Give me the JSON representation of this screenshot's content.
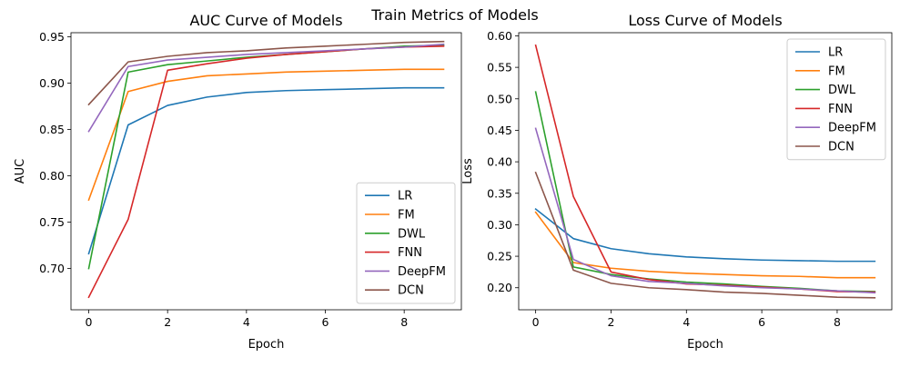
{
  "figure": {
    "title": "Train Metrics of Models"
  },
  "chart_data": [
    {
      "type": "line",
      "title": "AUC Curve of Models",
      "xlabel": "Epoch",
      "ylabel": "AUC",
      "x": [
        0,
        1,
        2,
        3,
        4,
        5,
        6,
        7,
        8,
        9
      ],
      "xlim": [
        -0.45,
        9.45
      ],
      "ylim": [
        0.6555,
        0.9545
      ],
      "xticks": [
        0,
        2,
        4,
        6,
        8
      ],
      "yticks": [
        0.7,
        0.75,
        0.8,
        0.85,
        0.9,
        0.95
      ],
      "ytick_decimals": 2,
      "grid": false,
      "legend_position": "lower right",
      "series": [
        {
          "name": "LR",
          "color": "#1f77b4",
          "values": [
            0.716,
            0.855,
            0.876,
            0.885,
            0.89,
            0.892,
            0.893,
            0.894,
            0.895,
            0.895
          ]
        },
        {
          "name": "FM",
          "color": "#ff7f0e",
          "values": [
            0.774,
            0.891,
            0.902,
            0.908,
            0.91,
            0.912,
            0.913,
            0.914,
            0.915,
            0.915
          ]
        },
        {
          "name": "DWL",
          "color": "#2ca02c",
          "values": [
            0.7,
            0.912,
            0.92,
            0.924,
            0.928,
            0.931,
            0.934,
            0.937,
            0.94,
            0.941
          ]
        },
        {
          "name": "FNN",
          "color": "#d62728",
          "values": [
            0.669,
            0.753,
            0.914,
            0.921,
            0.927,
            0.931,
            0.934,
            0.937,
            0.939,
            0.94
          ]
        },
        {
          "name": "DeepFM",
          "color": "#9467bd",
          "values": [
            0.848,
            0.918,
            0.925,
            0.928,
            0.931,
            0.933,
            0.935,
            0.937,
            0.939,
            0.942
          ]
        },
        {
          "name": "DCN",
          "color": "#8c564b",
          "values": [
            0.877,
            0.923,
            0.929,
            0.933,
            0.935,
            0.938,
            0.94,
            0.942,
            0.944,
            0.945
          ]
        }
      ]
    },
    {
      "type": "line",
      "title": "Loss Curve of Models",
      "xlabel": "Epoch",
      "ylabel": "Loss",
      "x": [
        0,
        1,
        2,
        3,
        4,
        5,
        6,
        7,
        8,
        9
      ],
      "xlim": [
        -0.45,
        9.45
      ],
      "ylim": [
        0.165,
        0.605
      ],
      "xticks": [
        0,
        2,
        4,
        6,
        8
      ],
      "yticks": [
        0.2,
        0.25,
        0.3,
        0.35,
        0.4,
        0.45,
        0.5,
        0.55,
        0.6
      ],
      "ytick_decimals": 2,
      "grid": false,
      "legend_position": "upper right",
      "series": [
        {
          "name": "LR",
          "color": "#1f77b4",
          "values": [
            0.325,
            0.278,
            0.262,
            0.254,
            0.249,
            0.246,
            0.244,
            0.243,
            0.242,
            0.242
          ]
        },
        {
          "name": "FM",
          "color": "#ff7f0e",
          "values": [
            0.32,
            0.24,
            0.231,
            0.226,
            0.223,
            0.221,
            0.219,
            0.218,
            0.216,
            0.216
          ]
        },
        {
          "name": "DWL",
          "color": "#2ca02c",
          "values": [
            0.511,
            0.233,
            0.221,
            0.214,
            0.209,
            0.206,
            0.202,
            0.199,
            0.195,
            0.194
          ]
        },
        {
          "name": "FNN",
          "color": "#d62728",
          "values": [
            0.585,
            0.345,
            0.225,
            0.213,
            0.206,
            0.204,
            0.201,
            0.198,
            0.194,
            0.193
          ]
        },
        {
          "name": "DeepFM",
          "color": "#9467bd",
          "values": [
            0.453,
            0.245,
            0.219,
            0.21,
            0.207,
            0.203,
            0.2,
            0.198,
            0.195,
            0.192
          ]
        },
        {
          "name": "DCN",
          "color": "#8c564b",
          "values": [
            0.383,
            0.228,
            0.207,
            0.2,
            0.197,
            0.193,
            0.191,
            0.188,
            0.185,
            0.184
          ]
        }
      ]
    }
  ]
}
